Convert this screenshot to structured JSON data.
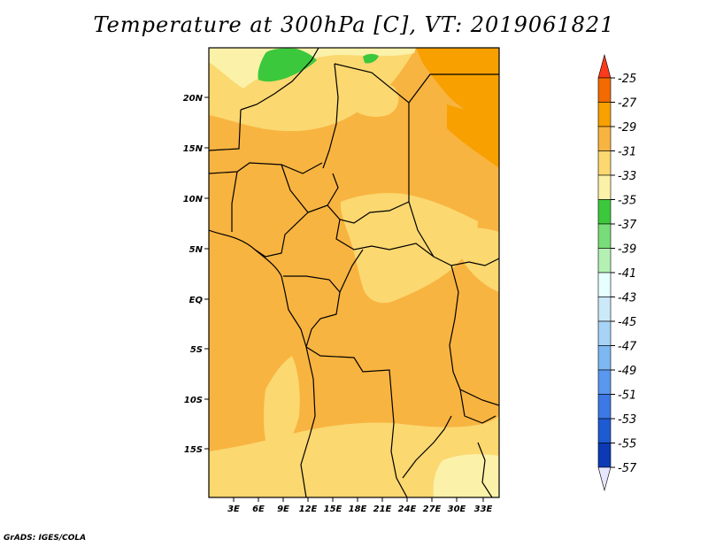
{
  "title": "Temperature at 300hPa [C], VT: 2019061821",
  "credit": "GrADS: IGES/COLA",
  "map": {
    "lat_labels": [
      "20N",
      "15N",
      "10N",
      "5N",
      "EQ",
      "5S",
      "10S",
      "15S"
    ],
    "lon_labels": [
      "3E",
      "6E",
      "9E",
      "12E",
      "15E",
      "18E",
      "21E",
      "24E",
      "27E",
      "30E",
      "33E"
    ]
  },
  "colorbar": {
    "labels": [
      "-25",
      "-27",
      "-29",
      "-31",
      "-33",
      "-35",
      "-37",
      "-39",
      "-41",
      "-43",
      "-45",
      "-47",
      "-49",
      "-51",
      "-53",
      "-55",
      "-57"
    ],
    "colors": [
      "#ff3a1a",
      "#f26a00",
      "#f7a000",
      "#f8b440",
      "#fbd870",
      "#fbf1a8",
      "#3cc83c",
      "#78dc78",
      "#b4f0b4",
      "#e6ffff",
      "#cbe9f8",
      "#a6d3f6",
      "#7eb8f2",
      "#5a97ee",
      "#3c78e6",
      "#1e5ad2",
      "#0c3ab4",
      "#081e8c",
      "#e6e6ff"
    ]
  },
  "legend_colors": {
    "shade_m29_m27": "#f7a000",
    "shade_m31_m29": "#f8b440",
    "shade_m33_m31": "#fbd870",
    "shade_m35_m33": "#fbf1a8",
    "shade_m37_m35": "#3cc83c"
  }
}
